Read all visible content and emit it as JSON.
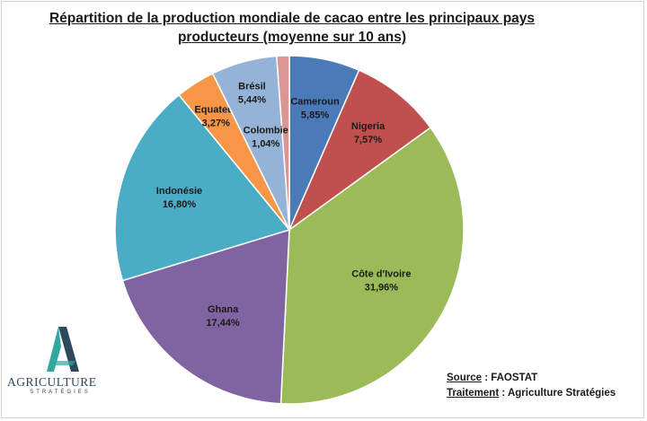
{
  "title": {
    "line1": "Répartition de la production mondiale de cacao entre les principaux pays",
    "line2": "producteurs (moyenne sur 10 ans)"
  },
  "source": {
    "source_key": "Source",
    "source_value": " : FAOSTAT",
    "treatment_key": "Traitement",
    "treatment_value": " : Agriculture Stratégies"
  },
  "logo": {
    "word": "AGRICULTURE",
    "sub": "STRATÉGIES"
  },
  "colors": {
    "logo_teal": "#2fa8a0",
    "logo_navy": "#2d4a5c"
  },
  "chart_data": {
    "type": "pie",
    "unit": "%",
    "slices": [
      {
        "label": "Cameroun",
        "value_text": "5,85%",
        "value": 5.85,
        "color": "#4a7ab8"
      },
      {
        "label": "Nigeria",
        "value_text": "7,57%",
        "value": 7.57,
        "color": "#c0504d"
      },
      {
        "label": "Côte d'Ivoire",
        "value_text": "31,96%",
        "value": 31.96,
        "color": "#9bbb59"
      },
      {
        "label": "Ghana",
        "value_text": "17,44%",
        "value": 17.44,
        "color": "#8064a2"
      },
      {
        "label": "Indonésie",
        "value_text": "16,80%",
        "value": 16.8,
        "color": "#4bacc6"
      },
      {
        "label": "Equateur",
        "value_text": "3,27%",
        "value": 3.27,
        "color": "#f79646"
      },
      {
        "label": "Brésil",
        "value_text": "5,44%",
        "value": 5.44,
        "color": "#95b3d7"
      },
      {
        "label": "Colombie",
        "value_text": "1,04%",
        "value": 1.04,
        "color": "#d99694"
      }
    ]
  }
}
